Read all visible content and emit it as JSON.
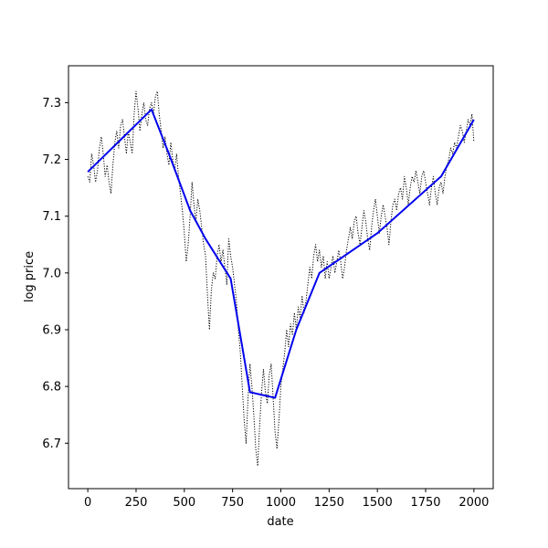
{
  "chart_data": {
    "type": "line",
    "title": "",
    "xlabel": "date",
    "ylabel": "log price",
    "xlim": [
      -100,
      2100
    ],
    "ylim": [
      6.62,
      7.365
    ],
    "x_ticks": [
      0,
      250,
      500,
      750,
      1000,
      1250,
      1500,
      1750,
      2000
    ],
    "y_ticks": [
      6.7,
      6.8,
      6.9,
      7.0,
      7.1,
      7.2,
      7.3
    ],
    "grid": false,
    "legend": "none",
    "series": [
      {
        "style": "dotted",
        "color": "#000000",
        "points": [
          [
            0,
            7.17
          ],
          [
            10,
            7.16
          ],
          [
            20,
            7.21
          ],
          [
            30,
            7.19
          ],
          [
            40,
            7.16
          ],
          [
            50,
            7.18
          ],
          [
            60,
            7.22
          ],
          [
            70,
            7.24
          ],
          [
            80,
            7.21
          ],
          [
            90,
            7.17
          ],
          [
            100,
            7.19
          ],
          [
            110,
            7.16
          ],
          [
            120,
            7.14
          ],
          [
            130,
            7.19
          ],
          [
            140,
            7.23
          ],
          [
            150,
            7.25
          ],
          [
            160,
            7.22
          ],
          [
            170,
            7.26
          ],
          [
            180,
            7.27
          ],
          [
            190,
            7.24
          ],
          [
            200,
            7.21
          ],
          [
            210,
            7.25
          ],
          [
            220,
            7.23
          ],
          [
            230,
            7.21
          ],
          [
            240,
            7.28
          ],
          [
            250,
            7.32
          ],
          [
            260,
            7.29
          ],
          [
            270,
            7.25
          ],
          [
            280,
            7.28
          ],
          [
            290,
            7.3
          ],
          [
            300,
            7.27
          ],
          [
            310,
            7.26
          ],
          [
            320,
            7.29
          ],
          [
            330,
            7.3
          ],
          [
            340,
            7.28
          ],
          [
            350,
            7.31
          ],
          [
            360,
            7.32
          ],
          [
            370,
            7.28
          ],
          [
            380,
            7.25
          ],
          [
            390,
            7.22
          ],
          [
            400,
            7.24
          ],
          [
            410,
            7.21
          ],
          [
            420,
            7.19
          ],
          [
            430,
            7.23
          ],
          [
            440,
            7.2
          ],
          [
            450,
            7.18
          ],
          [
            460,
            7.21
          ],
          [
            470,
            7.17
          ],
          [
            480,
            7.14
          ],
          [
            490,
            7.11
          ],
          [
            500,
            7.07
          ],
          [
            510,
            7.02
          ],
          [
            520,
            7.05
          ],
          [
            530,
            7.1
          ],
          [
            540,
            7.16
          ],
          [
            550,
            7.12
          ],
          [
            560,
            7.09
          ],
          [
            570,
            7.13
          ],
          [
            580,
            7.11
          ],
          [
            590,
            7.08
          ],
          [
            600,
            7.05
          ],
          [
            610,
            7.03
          ],
          [
            620,
            6.96
          ],
          [
            630,
            6.9
          ],
          [
            640,
            6.97
          ],
          [
            650,
            7.0
          ],
          [
            660,
            6.99
          ],
          [
            670,
            7.03
          ],
          [
            680,
            7.05
          ],
          [
            690,
            7.02
          ],
          [
            700,
            7.04
          ],
          [
            710,
            7.01
          ],
          [
            720,
            6.98
          ],
          [
            730,
            7.06
          ],
          [
            740,
            7.03
          ],
          [
            750,
            7.01
          ],
          [
            760,
            6.98
          ],
          [
            770,
            6.95
          ],
          [
            780,
            6.9
          ],
          [
            790,
            6.86
          ],
          [
            800,
            6.8
          ],
          [
            810,
            6.74
          ],
          [
            820,
            6.7
          ],
          [
            830,
            6.78
          ],
          [
            840,
            6.84
          ],
          [
            850,
            6.8
          ],
          [
            860,
            6.75
          ],
          [
            870,
            6.69
          ],
          [
            880,
            6.66
          ],
          [
            890,
            6.73
          ],
          [
            900,
            6.79
          ],
          [
            910,
            6.83
          ],
          [
            920,
            6.79
          ],
          [
            930,
            6.77
          ],
          [
            940,
            6.82
          ],
          [
            950,
            6.84
          ],
          [
            960,
            6.78
          ],
          [
            970,
            6.72
          ],
          [
            980,
            6.69
          ],
          [
            990,
            6.74
          ],
          [
            1000,
            6.8
          ],
          [
            1010,
            6.83
          ],
          [
            1020,
            6.86
          ],
          [
            1030,
            6.9
          ],
          [
            1040,
            6.87
          ],
          [
            1050,
            6.91
          ],
          [
            1060,
            6.89
          ],
          [
            1070,
            6.93
          ],
          [
            1080,
            6.9
          ],
          [
            1090,
            6.94
          ],
          [
            1100,
            6.92
          ],
          [
            1110,
            6.96
          ],
          [
            1120,
            6.93
          ],
          [
            1130,
            6.95
          ],
          [
            1140,
            6.98
          ],
          [
            1150,
            7.01
          ],
          [
            1160,
            6.99
          ],
          [
            1170,
            7.03
          ],
          [
            1180,
            7.05
          ],
          [
            1190,
            7.02
          ],
          [
            1200,
            7.04
          ],
          [
            1210,
            7.01
          ],
          [
            1220,
            7.03
          ],
          [
            1230,
            6.99
          ],
          [
            1240,
            7.02
          ],
          [
            1250,
            6.99
          ],
          [
            1260,
            7.01
          ],
          [
            1270,
            7.03
          ],
          [
            1280,
            7.0
          ],
          [
            1290,
            7.02
          ],
          [
            1300,
            7.04
          ],
          [
            1310,
            7.02
          ],
          [
            1320,
            6.99
          ],
          [
            1330,
            7.01
          ],
          [
            1340,
            7.04
          ],
          [
            1350,
            7.06
          ],
          [
            1360,
            7.08
          ],
          [
            1370,
            7.06
          ],
          [
            1380,
            7.09
          ],
          [
            1390,
            7.1
          ],
          [
            1400,
            7.07
          ],
          [
            1410,
            7.05
          ],
          [
            1420,
            7.08
          ],
          [
            1430,
            7.11
          ],
          [
            1440,
            7.09
          ],
          [
            1450,
            7.06
          ],
          [
            1460,
            7.04
          ],
          [
            1470,
            7.08
          ],
          [
            1480,
            7.11
          ],
          [
            1490,
            7.13
          ],
          [
            1500,
            7.1
          ],
          [
            1510,
            7.07
          ],
          [
            1520,
            7.1
          ],
          [
            1530,
            7.12
          ],
          [
            1540,
            7.1
          ],
          [
            1550,
            7.08
          ],
          [
            1560,
            7.05
          ],
          [
            1570,
            7.09
          ],
          [
            1580,
            7.12
          ],
          [
            1590,
            7.13
          ],
          [
            1600,
            7.11
          ],
          [
            1610,
            7.14
          ],
          [
            1620,
            7.15
          ],
          [
            1630,
            7.13
          ],
          [
            1640,
            7.17
          ],
          [
            1650,
            7.15
          ],
          [
            1660,
            7.12
          ],
          [
            1670,
            7.15
          ],
          [
            1680,
            7.17
          ],
          [
            1690,
            7.16
          ],
          [
            1700,
            7.18
          ],
          [
            1710,
            7.16
          ],
          [
            1720,
            7.14
          ],
          [
            1730,
            7.17
          ],
          [
            1740,
            7.18
          ],
          [
            1750,
            7.16
          ],
          [
            1760,
            7.14
          ],
          [
            1770,
            7.12
          ],
          [
            1780,
            7.15
          ],
          [
            1790,
            7.17
          ],
          [
            1800,
            7.14
          ],
          [
            1810,
            7.12
          ],
          [
            1820,
            7.15
          ],
          [
            1830,
            7.16
          ],
          [
            1840,
            7.14
          ],
          [
            1850,
            7.17
          ],
          [
            1860,
            7.19
          ],
          [
            1870,
            7.2
          ],
          [
            1880,
            7.22
          ],
          [
            1890,
            7.21
          ],
          [
            1900,
            7.23
          ],
          [
            1910,
            7.22
          ],
          [
            1920,
            7.24
          ],
          [
            1930,
            7.26
          ],
          [
            1940,
            7.25
          ],
          [
            1950,
            7.23
          ],
          [
            1960,
            7.25
          ],
          [
            1970,
            7.27
          ],
          [
            1980,
            7.26
          ],
          [
            1990,
            7.28
          ],
          [
            2000,
            7.23
          ]
        ]
      },
      {
        "style": "solid",
        "color": "#0000ee",
        "points": [
          [
            0,
            7.178
          ],
          [
            330,
            7.288
          ],
          [
            420,
            7.21
          ],
          [
            530,
            7.11
          ],
          [
            610,
            7.06
          ],
          [
            740,
            6.99
          ],
          [
            840,
            6.79
          ],
          [
            970,
            6.78
          ],
          [
            1080,
            6.9
          ],
          [
            1200,
            7.0
          ],
          [
            1500,
            7.07
          ],
          [
            1830,
            7.17
          ],
          [
            2000,
            7.27
          ]
        ]
      }
    ]
  }
}
